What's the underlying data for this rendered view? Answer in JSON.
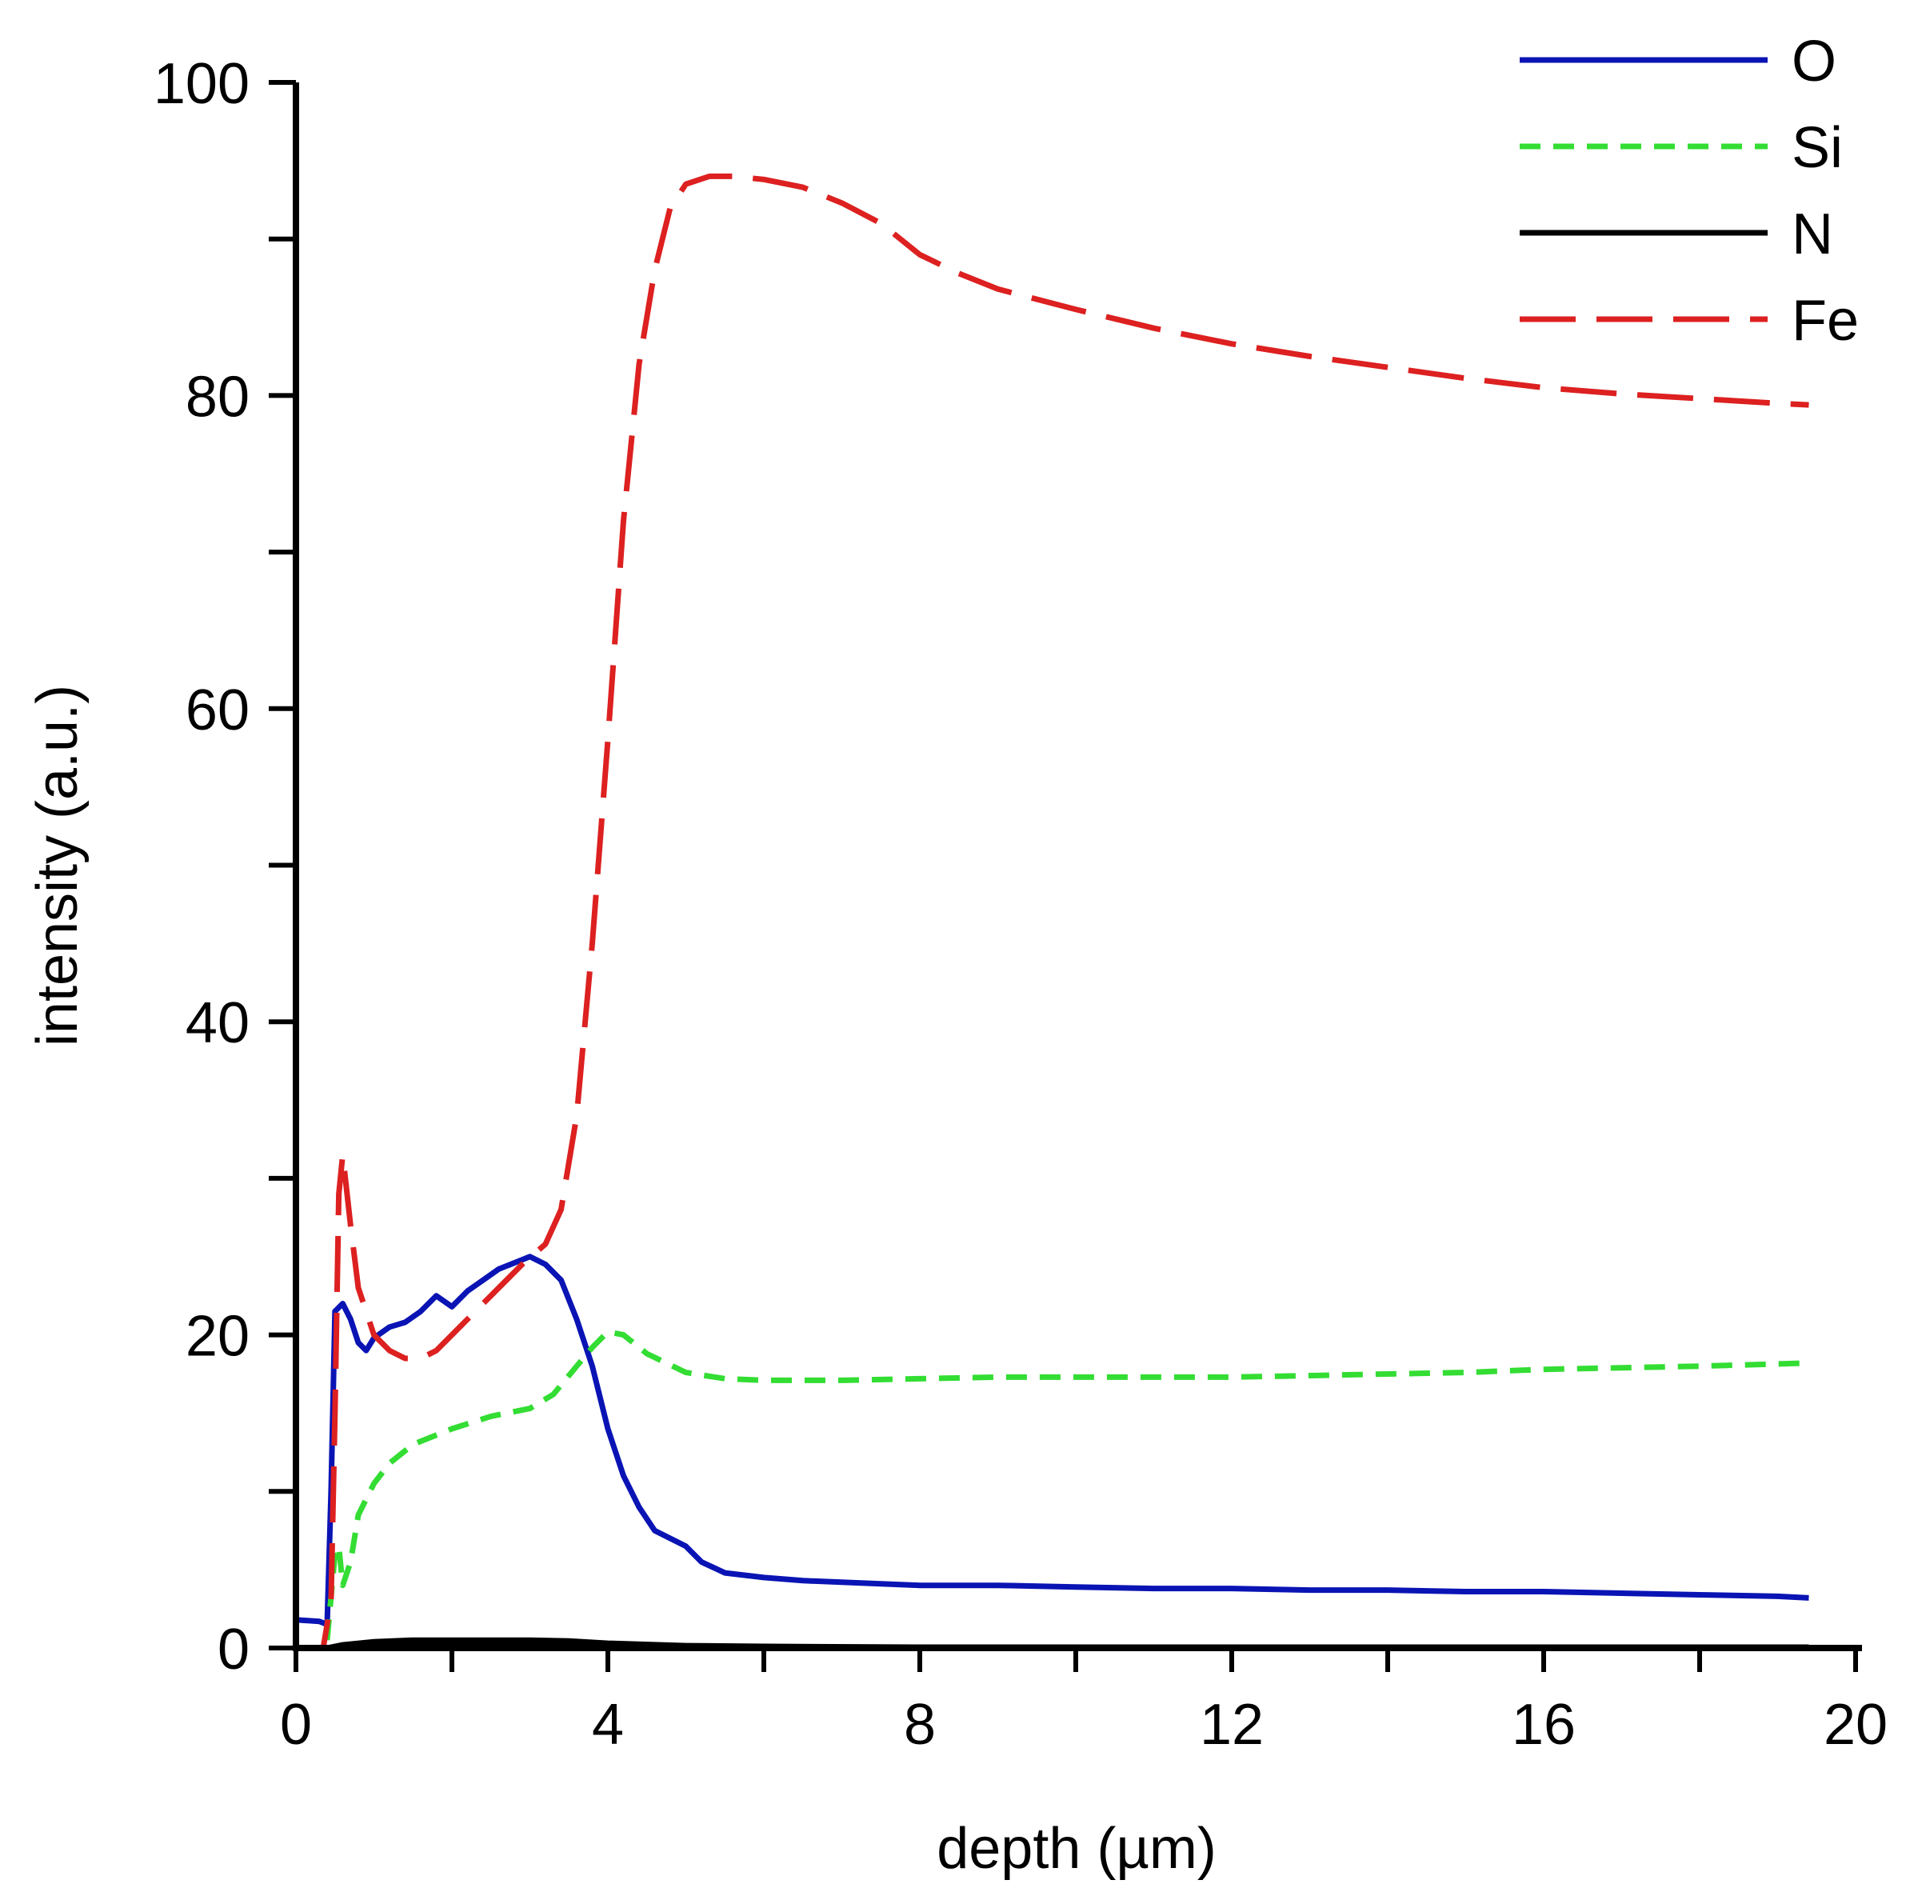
{
  "chart_data": {
    "type": "line",
    "title": "",
    "xlabel": "depth (µm)",
    "ylabel": "intensity (a.u.)",
    "xlim": [
      0,
      20
    ],
    "ylim": [
      0,
      100
    ],
    "x_ticks": [
      0,
      4,
      8,
      12,
      16,
      20
    ],
    "x_tick_labels": [
      "0",
      "4",
      "8",
      "12",
      "16",
      "20"
    ],
    "y_ticks": [
      0,
      20,
      40,
      60,
      80,
      100
    ],
    "y_tick_labels": [
      "0",
      "20",
      "40",
      "60",
      "80",
      "100"
    ],
    "x_minor_ticks": [
      2,
      6,
      10,
      14,
      18
    ],
    "y_minor_ticks": [
      10,
      30,
      50,
      70,
      90
    ],
    "grid": false,
    "legend_position": "top-right",
    "series": [
      {
        "name": "O",
        "color": "#0a14b4",
        "dash": "solid",
        "x": [
          0,
          0.3,
          0.4,
          0.45,
          0.5,
          0.6,
          0.7,
          0.8,
          0.9,
          1.0,
          1.2,
          1.4,
          1.6,
          1.8,
          2.0,
          2.2,
          2.4,
          2.6,
          2.8,
          3.0,
          3.2,
          3.4,
          3.6,
          3.8,
          4.0,
          4.2,
          4.4,
          4.6,
          4.8,
          5.0,
          5.2,
          5.5,
          6.0,
          6.5,
          7.0,
          7.5,
          8.0,
          9.0,
          10.0,
          11.0,
          12.0,
          13.0,
          14.0,
          15.0,
          16.0,
          17.0,
          18.0,
          19.0,
          19.4
        ],
        "y": [
          1.8,
          1.7,
          1.5,
          10,
          21.5,
          22,
          21,
          19.5,
          19,
          19.8,
          20.5,
          20.8,
          21.5,
          22.5,
          21.8,
          22.8,
          23.5,
          24.2,
          24.6,
          25,
          24.5,
          23.5,
          21,
          18,
          14,
          11,
          9,
          7.5,
          7,
          6.5,
          5.5,
          4.8,
          4.5,
          4.3,
          4.2,
          4.1,
          4.0,
          4.0,
          3.9,
          3.8,
          3.8,
          3.7,
          3.7,
          3.6,
          3.6,
          3.5,
          3.4,
          3.3,
          3.2
        ]
      },
      {
        "name": "Si",
        "color": "#33dd33",
        "dash": "short-dash",
        "x": [
          0.4,
          0.5,
          0.55,
          0.6,
          0.7,
          0.8,
          1.0,
          1.2,
          1.5,
          2.0,
          2.5,
          3.0,
          3.3,
          3.6,
          3.8,
          4.0,
          4.2,
          4.5,
          5.0,
          5.5,
          6.0,
          7.0,
          8.0,
          9.0,
          10.0,
          11.0,
          12.0,
          13.0,
          14.0,
          15.0,
          16.0,
          17.0,
          18.0,
          19.4
        ],
        "y": [
          0.5,
          6,
          6.5,
          4,
          5.5,
          8.5,
          10.5,
          11.8,
          13,
          14,
          14.8,
          15.3,
          16.2,
          18,
          19.2,
          20.2,
          20,
          18.8,
          17.6,
          17.2,
          17.1,
          17.1,
          17.2,
          17.3,
          17.3,
          17.3,
          17.3,
          17.4,
          17.5,
          17.6,
          17.8,
          17.9,
          18.0,
          18.2
        ]
      },
      {
        "name": "N",
        "color": "#000000",
        "dash": "solid",
        "x": [
          0,
          0.4,
          0.6,
          1.0,
          1.5,
          2.0,
          3.0,
          3.5,
          4.0,
          5.0,
          6.0,
          8.0,
          10.0,
          12.0,
          14.0,
          16.0,
          18.0,
          19.4
        ],
        "y": [
          0,
          0,
          0.2,
          0.4,
          0.5,
          0.5,
          0.5,
          0.45,
          0.3,
          0.15,
          0.1,
          0.05,
          0.05,
          0.05,
          0.05,
          0.05,
          0.05,
          0.05
        ],
        "x_b": [
          0,
          0.4,
          0.6,
          1.0,
          1.5,
          2.0,
          3.0,
          3.5,
          4.0,
          5.0,
          6.0,
          8.0,
          12.0,
          19.4
        ],
        "y_b": [
          0,
          0,
          0.1,
          0.2,
          0.25,
          0.3,
          0.3,
          0.25,
          0.15,
          0.1,
          0.05,
          0.03,
          0.03,
          0.03
        ]
      },
      {
        "name": "Fe",
        "color": "#dd2020",
        "dash": "long-dash",
        "x": [
          0,
          0.35,
          0.45,
          0.5,
          0.55,
          0.6,
          0.7,
          0.8,
          1.0,
          1.2,
          1.4,
          1.6,
          1.8,
          2.0,
          2.3,
          2.6,
          2.9,
          3.2,
          3.4,
          3.6,
          3.8,
          4.0,
          4.2,
          4.4,
          4.6,
          4.8,
          5.0,
          5.3,
          5.6,
          6.0,
          6.5,
          7.0,
          7.5,
          8.0,
          8.5,
          9.0,
          10.0,
          11.0,
          12.0,
          13.0,
          14.0,
          15.0,
          16.0,
          17.0,
          18.0,
          19.0,
          19.4
        ],
        "y": [
          0,
          0,
          3,
          15,
          29,
          31.5,
          27,
          23,
          20,
          19,
          18.5,
          18.5,
          19,
          20,
          21.5,
          23,
          24.5,
          25.8,
          28,
          34,
          45,
          58,
          72,
          82,
          88,
          92,
          93.5,
          94,
          94,
          93.8,
          93.3,
          92.3,
          91,
          89,
          87.8,
          86.8,
          85.5,
          84.3,
          83.3,
          82.5,
          81.8,
          81.1,
          80.5,
          80.1,
          79.8,
          79.5,
          79.4
        ]
      }
    ]
  }
}
